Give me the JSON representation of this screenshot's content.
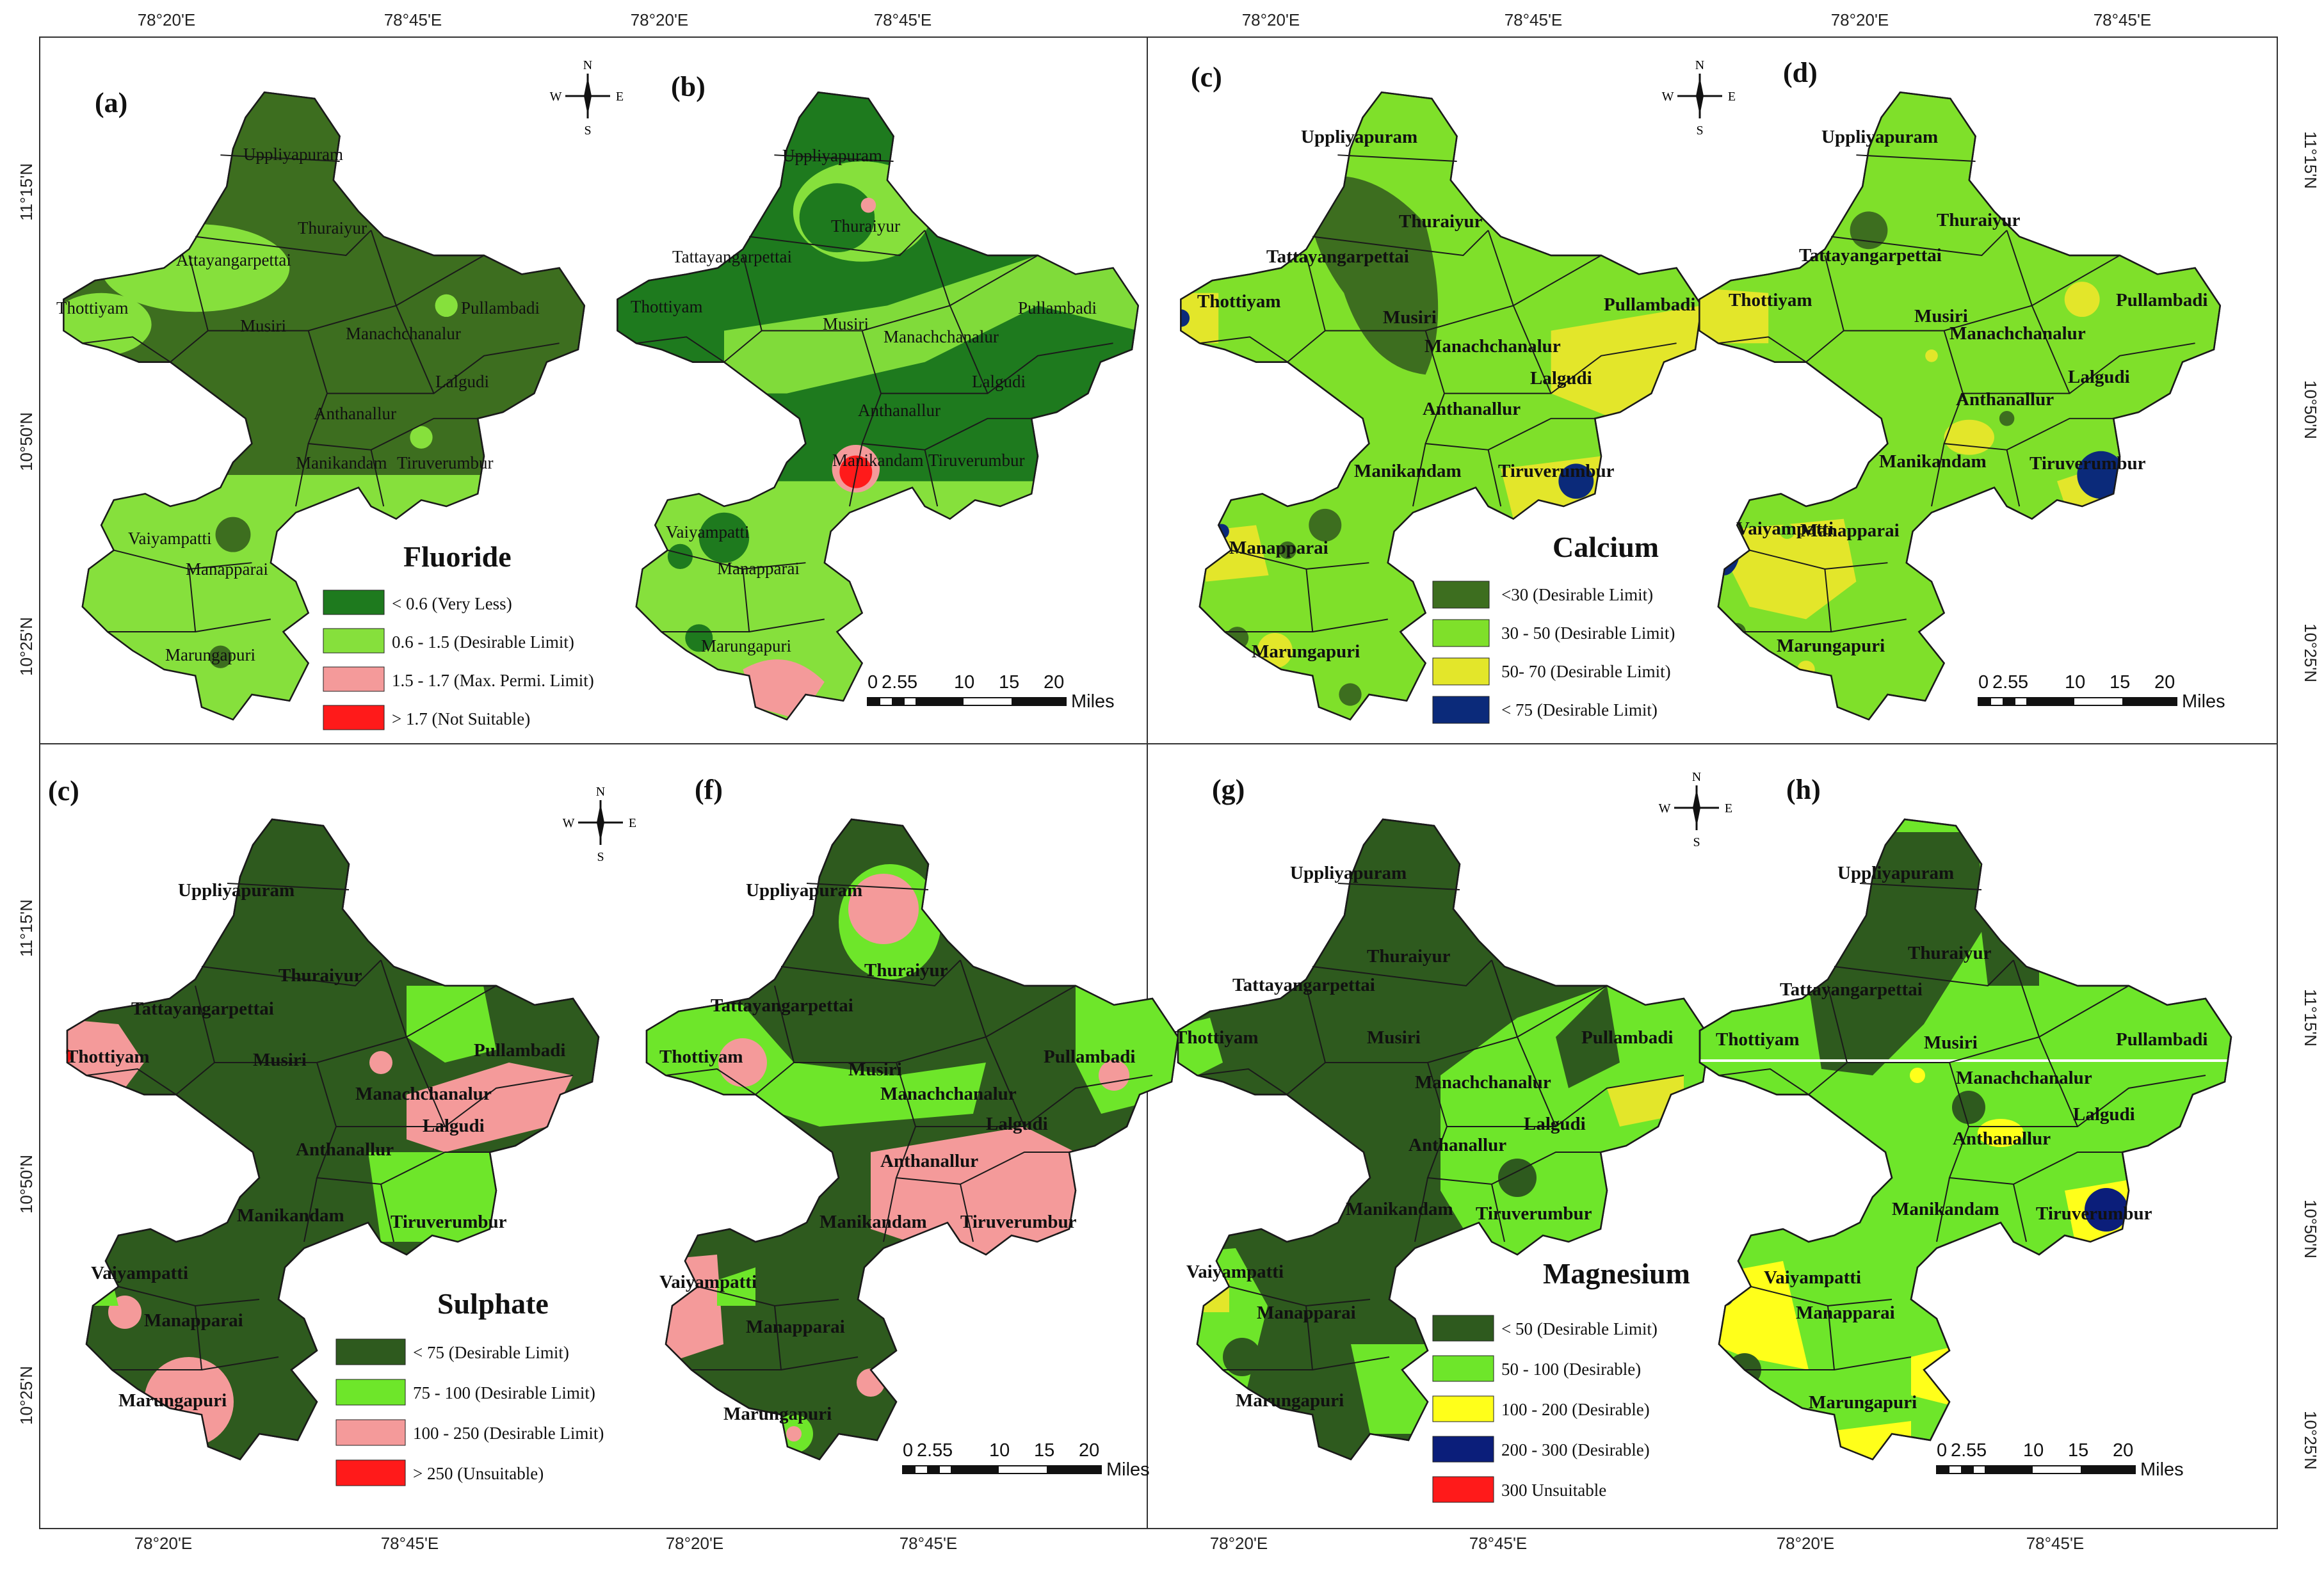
{
  "coords": {
    "top": [
      "78°20'E",
      "78°45'E",
      "78°20'E",
      "78°45'E",
      "78°20'E",
      "78°45'E",
      "78°20'E",
      "78°45'E"
    ],
    "bottom": [
      "78°20'E",
      "78°45'E",
      "78°20'E",
      "78°45'E",
      "78°20'E",
      "78°45'E",
      "78°20'E",
      "78°45'E"
    ],
    "left": [
      "11°15'N",
      "10°50'N",
      "10°25'N",
      "11°15'N",
      "10°50'N",
      "10°25'N"
    ],
    "right": [
      "11°15'N",
      "10°50'N",
      "10°25'N",
      "11°15'N",
      "10°50'N",
      "10°25'N"
    ]
  },
  "panels": {
    "a": "(a)",
    "b": "(b)",
    "c": "(c)",
    "d": "(d)",
    "e": "(c)",
    "f": "(f)",
    "g": "(g)",
    "h": "(h)"
  },
  "compass": {
    "n": "N",
    "s": "S",
    "e": "E",
    "w": "W"
  },
  "places": {
    "uppliyapuram": "Uppliyapuram",
    "thuraiyur": "Thuraiyur",
    "tattayangarpettai": "Tattayangarpettai",
    "thottiyam": "Thottiyam",
    "musiri": "Musiri",
    "pullambadi": "Pullambadi",
    "manachchanalur": "Manachchanalur",
    "lalgudi": "Lalgudi",
    "anthanallur": "Anthanallur",
    "manikandam": "Manikandam",
    "tiruverumbur": "Tiruverumbur",
    "vaiyampatti": "Vaiyampatti",
    "manapparai": "Manapparai",
    "marungapuri": "Marungapuri",
    "a_tattayangarpettai": "Attayangarpettai",
    "a_thottiyam": "Thottiyam",
    "a_manachchanalur": "Manachchanalur",
    "b_tattayangarpettai": "Tattayangarpettai",
    "b_manikandam": "Manikandam",
    "b_tiruverumbur": "Tiruverumbur",
    "c_manachchanalur": "Manachchanalur",
    "d_manachchanalur": "Manachchanalur"
  },
  "legends": {
    "fluoride": {
      "title": "Fluoride",
      "items": [
        {
          "label": "< 0.6 (Very Less)",
          "color": "#1e7a1e"
        },
        {
          "label": "0.6 - 1.5 (Desirable Limit)",
          "color": "#86e03c"
        },
        {
          "label": "1.5 - 1.7 (Max. Permi. Limit)",
          "color": "#f49a9a"
        },
        {
          "label": "> 1.7 (Not Suitable)",
          "color": "#ff1a1a"
        }
      ]
    },
    "calcium": {
      "title": "Calcium",
      "items": [
        {
          "label": "<30  (Desirable Limit)",
          "color": "#3d6e1f"
        },
        {
          "label": "30 - 50  (Desirable Limit)",
          "color": "#7fe02a"
        },
        {
          "label": "50- 70  (Desirable Limit)",
          "color": "#e3e62a"
        },
        {
          "label": "< 75  (Desirable Limit)",
          "color": "#0b2a7a"
        }
      ]
    },
    "sulphate": {
      "title": "Sulphate",
      "items": [
        {
          "label": "< 75 (Desirable Limit)",
          "color": "#2e5a1e"
        },
        {
          "label": "75 - 100 (Desirable Limit)",
          "color": "#6ee62a"
        },
        {
          "label": "100 - 250 (Desirable Limit)",
          "color": "#f49a9a"
        },
        {
          "label": "> 250  (Unsuitable)",
          "color": "#ff1a1a"
        }
      ]
    },
    "magnesium": {
      "title": "Magnesium",
      "items": [
        {
          "label": "< 50 (Desirable Limit)",
          "color": "#2e5a1e"
        },
        {
          "label": "50 - 100 (Desirable)",
          "color": "#6ee62a"
        },
        {
          "label": "100 - 200 (Desirable)",
          "color": "#ffff1a"
        },
        {
          "label": "200 - 300 (Desirable)",
          "color": "#0b1e7a"
        },
        {
          "label": "300  Unsuitable",
          "color": "#ff1a1a"
        }
      ]
    }
  },
  "scale": {
    "ticks": [
      "0",
      "2.5",
      "5",
      "10",
      "15",
      "20"
    ],
    "unit": "Miles"
  },
  "colors": {
    "dark_green": "#1e7a1e",
    "olive_green": "#3d6e1f",
    "deep_green": "#2e5a1e",
    "light_green": "#86e03c",
    "bright_green": "#6ee62a",
    "pink": "#f49a9a",
    "red": "#ff1a1a",
    "yellow": "#e3e62a",
    "navy": "#0b2a7a"
  }
}
